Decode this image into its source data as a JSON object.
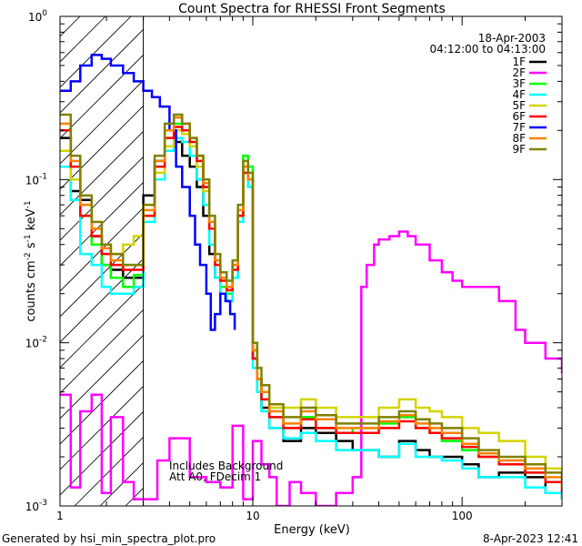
{
  "chart_data": {
    "type": "line",
    "title": "Count Spectra for RHESSI Front Segments",
    "xlabel": "Energy (keV)",
    "ylabel": "counts cm^-2 s^-1 keV^-1",
    "ylabel_parts": {
      "base": "counts cm",
      "exp1": "-2",
      "mid": " s",
      "exp2": "-1",
      "mid2": " keV",
      "exp3": "-1"
    },
    "xscale": "log",
    "yscale": "log",
    "xlim": [
      1.2,
      300
    ],
    "ylim": [
      0.001,
      1.0
    ],
    "xticks": [
      {
        "value": 1,
        "label": "1"
      },
      {
        "value": 10,
        "label": "10"
      },
      {
        "value": 100,
        "label": "100"
      }
    ],
    "yticks": [
      {
        "value": 1,
        "base": "10",
        "exp": "0"
      },
      {
        "value": 0.1,
        "base": "10",
        "exp": "-1"
      },
      {
        "value": 0.01,
        "base": "10",
        "exp": "-2"
      },
      {
        "value": 0.001,
        "base": "10",
        "exp": "-3"
      }
    ],
    "hatched_region": {
      "x_from": 1.2,
      "x_to": 3.0
    },
    "date": "18-Apr-2003",
    "time_range": "04:12:00 to 04:13:00",
    "annotations": [
      "Includes Background",
      "Att A0, FDecim 1"
    ],
    "legend_position": "top-right",
    "series": [
      {
        "name": "1F",
        "color": "#000000",
        "x": [
          1.2,
          1.35,
          1.5,
          1.7,
          1.9,
          2.1,
          2.4,
          2.7,
          3.0,
          3.4,
          3.8,
          4.2,
          4.6,
          5.0,
          5.4,
          5.8,
          6.2,
          6.6,
          7.0,
          7.5,
          8.0,
          8.5,
          9.0,
          9.5,
          10.0,
          10.5,
          11.0,
          12.0,
          14,
          17,
          20,
          25,
          30,
          40,
          50,
          60,
          70,
          80,
          100,
          120,
          150,
          200,
          250,
          300
        ],
        "y": [
          0.18,
          0.085,
          0.075,
          0.045,
          0.03,
          0.028,
          0.025,
          0.025,
          0.08,
          0.13,
          0.15,
          0.17,
          0.14,
          0.12,
          0.09,
          0.06,
          0.035,
          0.025,
          0.02,
          0.018,
          0.025,
          0.06,
          0.12,
          0.1,
          0.008,
          0.005,
          0.004,
          0.003,
          0.0025,
          0.003,
          0.0028,
          0.0025,
          0.0022,
          0.002,
          0.0025,
          0.0022,
          0.002,
          0.002,
          0.0018,
          0.0015,
          0.0016,
          0.0015,
          0.0012,
          0.0011
        ]
      },
      {
        "name": "2F",
        "color": "#ff00ff",
        "x": [
          1.2,
          1.35,
          1.5,
          1.7,
          1.9,
          2.1,
          2.4,
          2.7,
          3.0,
          3.5,
          4,
          5,
          6,
          7,
          8,
          9,
          10,
          11,
          12,
          13,
          15,
          17,
          20,
          25,
          30,
          33,
          35,
          38,
          40,
          45,
          50,
          55,
          60,
          70,
          80,
          90,
          100,
          120,
          150,
          180,
          200,
          250,
          300
        ],
        "y": [
          0.0048,
          0.0013,
          0.0038,
          0.0048,
          0.0012,
          0.0035,
          0.0014,
          0.0011,
          0.0011,
          0.0019,
          0.0026,
          0.0015,
          0.0014,
          0.0013,
          0.0031,
          0.0011,
          0.0025,
          0.0018,
          0.0015,
          0.001,
          0.0014,
          0.0012,
          0.001,
          0.0012,
          0.0015,
          0.022,
          0.03,
          0.04,
          0.043,
          0.045,
          0.048,
          0.045,
          0.04,
          0.032,
          0.027,
          0.024,
          0.022,
          0.022,
          0.018,
          0.012,
          0.01,
          0.008,
          0.0065
        ]
      },
      {
        "name": "3F",
        "color": "#00ff00",
        "x": [
          1.2,
          1.35,
          1.5,
          1.7,
          1.9,
          2.1,
          2.4,
          2.7,
          3.0,
          3.4,
          3.8,
          4.2,
          4.6,
          5.0,
          5.4,
          5.8,
          6.2,
          6.6,
          7.0,
          7.5,
          8.0,
          8.5,
          9.0,
          9.5,
          10.0,
          10.5,
          11.0,
          12.0,
          14,
          17,
          20,
          25,
          30,
          40,
          50,
          60,
          70,
          80,
          100,
          120,
          150,
          200,
          250,
          300
        ],
        "y": [
          0.2,
          0.1,
          0.06,
          0.04,
          0.03,
          0.025,
          0.022,
          0.026,
          0.06,
          0.12,
          0.2,
          0.22,
          0.2,
          0.17,
          0.13,
          0.09,
          0.05,
          0.03,
          0.022,
          0.02,
          0.03,
          0.06,
          0.14,
          0.12,
          0.01,
          0.006,
          0.0045,
          0.0035,
          0.003,
          0.0035,
          0.003,
          0.0028,
          0.003,
          0.0032,
          0.0035,
          0.003,
          0.0028,
          0.0025,
          0.0022,
          0.002,
          0.0018,
          0.0016,
          0.0014,
          0.0013
        ]
      },
      {
        "name": "4F",
        "color": "#00ffff",
        "x": [
          1.2,
          1.35,
          1.5,
          1.7,
          1.9,
          2.1,
          2.4,
          2.7,
          3.0,
          3.4,
          3.8,
          4.2,
          4.6,
          5.0,
          5.4,
          5.8,
          6.2,
          6.6,
          7.0,
          7.5,
          8.0,
          8.5,
          9.0,
          9.5,
          10.0,
          10.5,
          11.0,
          12.0,
          14,
          17,
          20,
          25,
          30,
          40,
          50,
          60,
          70,
          80,
          100,
          120,
          150,
          200,
          250,
          300
        ],
        "y": [
          0.12,
          0.075,
          0.035,
          0.03,
          0.022,
          0.02,
          0.02,
          0.022,
          0.055,
          0.1,
          0.15,
          0.18,
          0.17,
          0.14,
          0.1,
          0.07,
          0.04,
          0.025,
          0.02,
          0.018,
          0.025,
          0.055,
          0.11,
          0.09,
          0.007,
          0.005,
          0.0038,
          0.003,
          0.0026,
          0.0028,
          0.0025,
          0.0022,
          0.0022,
          0.002,
          0.0024,
          0.002,
          0.002,
          0.0019,
          0.0017,
          0.0015,
          0.0015,
          0.0013,
          0.0012,
          0.0011
        ]
      },
      {
        "name": "5F",
        "color": "#d4d400",
        "x": [
          1.2,
          1.35,
          1.5,
          1.7,
          1.9,
          2.1,
          2.4,
          2.7,
          3.0,
          3.4,
          3.8,
          4.2,
          4.6,
          5.0,
          5.4,
          5.8,
          6.2,
          6.6,
          7.0,
          7.5,
          8.0,
          8.5,
          9.0,
          9.5,
          10.0,
          10.5,
          11.0,
          12.0,
          14,
          17,
          20,
          25,
          30,
          40,
          50,
          60,
          70,
          80,
          100,
          120,
          150,
          200,
          250,
          300
        ],
        "y": [
          0.15,
          0.1,
          0.07,
          0.05,
          0.04,
          0.035,
          0.04,
          0.045,
          0.07,
          0.11,
          0.16,
          0.2,
          0.19,
          0.16,
          0.12,
          0.085,
          0.05,
          0.03,
          0.024,
          0.022,
          0.03,
          0.06,
          0.12,
          0.1,
          0.009,
          0.006,
          0.005,
          0.004,
          0.004,
          0.0045,
          0.004,
          0.0035,
          0.0035,
          0.004,
          0.0045,
          0.004,
          0.0038,
          0.0035,
          0.003,
          0.0028,
          0.0025,
          0.002,
          0.0017,
          0.0015
        ]
      },
      {
        "name": "6F",
        "color": "#ff0000",
        "x": [
          1.2,
          1.35,
          1.5,
          1.7,
          1.9,
          2.1,
          2.4,
          2.7,
          3.0,
          3.4,
          3.8,
          4.2,
          4.6,
          5.0,
          5.4,
          5.8,
          6.2,
          6.6,
          7.0,
          7.5,
          8.0,
          8.5,
          9.0,
          9.5,
          10.0,
          10.5,
          11.0,
          12.0,
          14,
          17,
          20,
          25,
          30,
          40,
          50,
          60,
          70,
          80,
          100,
          120,
          150,
          200,
          250,
          300
        ],
        "y": [
          0.2,
          0.12,
          0.06,
          0.045,
          0.035,
          0.03,
          0.028,
          0.028,
          0.06,
          0.12,
          0.18,
          0.21,
          0.2,
          0.17,
          0.13,
          0.09,
          0.05,
          0.03,
          0.024,
          0.021,
          0.028,
          0.06,
          0.11,
          0.1,
          0.008,
          0.006,
          0.0045,
          0.0035,
          0.003,
          0.0034,
          0.003,
          0.0028,
          0.0028,
          0.003,
          0.0033,
          0.003,
          0.0028,
          0.0026,
          0.0023,
          0.002,
          0.0018,
          0.0016,
          0.0014,
          0.0012
        ]
      },
      {
        "name": "7F",
        "color": "#0000ff",
        "x": [
          1.2,
          1.35,
          1.5,
          1.7,
          1.9,
          2.1,
          2.4,
          2.7,
          3.0,
          3.3,
          3.6,
          4.0,
          4.3,
          4.6,
          5.0,
          5.3,
          5.6,
          6.0,
          6.3,
          6.6,
          7.0,
          7.4,
          7.8,
          8.2
        ],
        "y": [
          0.35,
          0.4,
          0.5,
          0.58,
          0.55,
          0.5,
          0.45,
          0.4,
          0.35,
          0.32,
          0.28,
          0.2,
          0.12,
          0.09,
          0.06,
          0.04,
          0.03,
          0.02,
          0.012,
          0.015,
          0.02,
          0.018,
          0.015,
          0.012
        ]
      },
      {
        "name": "8F",
        "color": "#ff8000",
        "x": [
          1.2,
          1.35,
          1.5,
          1.7,
          1.9,
          2.1,
          2.4,
          2.7,
          3.0,
          3.4,
          3.8,
          4.2,
          4.6,
          5.0,
          5.4,
          5.8,
          6.2,
          6.6,
          7.0,
          7.5,
          8.0,
          8.5,
          9.0,
          9.5,
          10.0,
          10.5,
          11.0,
          12.0,
          14,
          17,
          20,
          25,
          30,
          40,
          50,
          60,
          70,
          80,
          100,
          120,
          150,
          200,
          250,
          300
        ],
        "y": [
          0.22,
          0.13,
          0.07,
          0.05,
          0.038,
          0.032,
          0.03,
          0.03,
          0.065,
          0.13,
          0.2,
          0.24,
          0.22,
          0.18,
          0.14,
          0.095,
          0.055,
          0.032,
          0.025,
          0.022,
          0.03,
          0.065,
          0.12,
          0.1,
          0.009,
          0.006,
          0.005,
          0.0038,
          0.0032,
          0.0038,
          0.0034,
          0.003,
          0.003,
          0.0033,
          0.0036,
          0.0032,
          0.003,
          0.0028,
          0.0024,
          0.0021,
          0.0019,
          0.0017,
          0.0015,
          0.0013
        ]
      },
      {
        "name": "9F",
        "color": "#808000",
        "x": [
          1.2,
          1.35,
          1.5,
          1.7,
          1.9,
          2.1,
          2.4,
          2.7,
          3.0,
          3.4,
          3.8,
          4.2,
          4.6,
          5.0,
          5.4,
          5.8,
          6.2,
          6.6,
          7.0,
          7.5,
          8.0,
          8.5,
          9.0,
          9.5,
          10.0,
          10.5,
          11.0,
          12.0,
          14,
          17,
          20,
          25,
          30,
          40,
          50,
          60,
          70,
          80,
          100,
          120,
          150,
          200,
          250,
          300
        ],
        "y": [
          0.25,
          0.14,
          0.08,
          0.055,
          0.04,
          0.035,
          0.03,
          0.03,
          0.07,
          0.14,
          0.22,
          0.25,
          0.22,
          0.18,
          0.14,
          0.1,
          0.06,
          0.035,
          0.027,
          0.024,
          0.032,
          0.07,
          0.13,
          0.11,
          0.01,
          0.007,
          0.0055,
          0.0042,
          0.0035,
          0.004,
          0.0036,
          0.0032,
          0.0032,
          0.0035,
          0.0038,
          0.0034,
          0.0032,
          0.003,
          0.0026,
          0.0022,
          0.002,
          0.0018,
          0.0016,
          0.0014
        ]
      }
    ]
  },
  "footer": {
    "generated_by": "Generated by hsi_min_spectra_plot.pro",
    "timestamp": "8-Apr-2023 12:41"
  }
}
